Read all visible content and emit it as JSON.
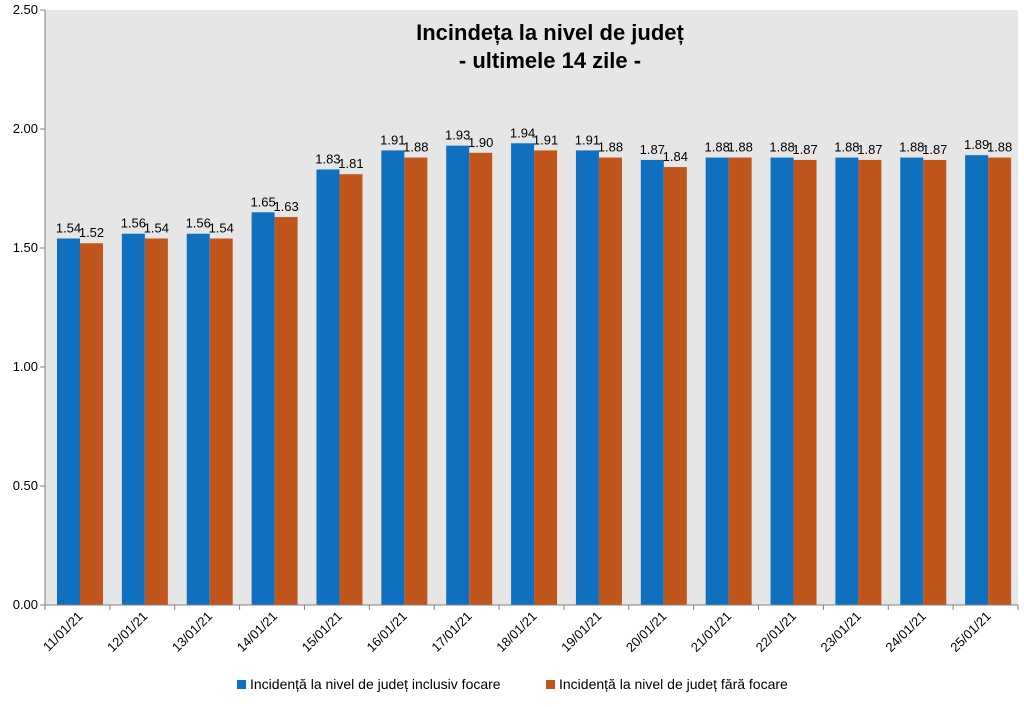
{
  "chart_data": {
    "type": "bar",
    "title": "Incindeța la nivel de județ",
    "subtitle": "- ultimele 14 zile -",
    "categories": [
      "11/01/21",
      "12/01/21",
      "13/01/21",
      "14/01/21",
      "15/01/21",
      "16/01/21",
      "17/01/21",
      "18/01/21",
      "19/01/21",
      "20/01/21",
      "21/01/21",
      "22/01/21",
      "23/01/21",
      "24/01/21",
      "25/01/21"
    ],
    "series": [
      {
        "name": "Incidență la nivel de județ inclusiv focare",
        "color": "#1070c0",
        "values": [
          1.54,
          1.56,
          1.56,
          1.65,
          1.83,
          1.91,
          1.93,
          1.94,
          1.91,
          1.87,
          1.88,
          1.88,
          1.88,
          1.88,
          1.89
        ],
        "labels": [
          "1.54",
          "1.56",
          "1.56",
          "1.65",
          "1.83",
          "1.91",
          "1.93",
          "1.94",
          "1.91",
          "1.87",
          "1.88",
          "1.88",
          "1.88",
          "1.88",
          "1.89"
        ]
      },
      {
        "name": "Incidență la nivel de județ fără focare",
        "color": "#c0561c",
        "values": [
          1.52,
          1.54,
          1.54,
          1.63,
          1.81,
          1.88,
          1.9,
          1.91,
          1.88,
          1.84,
          1.88,
          1.87,
          1.87,
          1.87,
          1.88
        ],
        "labels": [
          "1.52",
          "1.54",
          "1.54",
          "1.63",
          "1.81",
          "1.88",
          "1.90",
          "1.91",
          "1.88",
          "1.84",
          "1.88",
          "1.87",
          "1.87",
          "1.87",
          "1.88"
        ]
      }
    ],
    "ylim": [
      0,
      2.5
    ],
    "yticks": [
      "0.00",
      "0.50",
      "1.00",
      "1.50",
      "2.00",
      "2.50"
    ],
    "ytick_values": [
      0,
      0.5,
      1.0,
      1.5,
      2.0,
      2.5
    ],
    "plot_background": "#e6e6e6",
    "grid": false,
    "legend_position": "bottom"
  }
}
